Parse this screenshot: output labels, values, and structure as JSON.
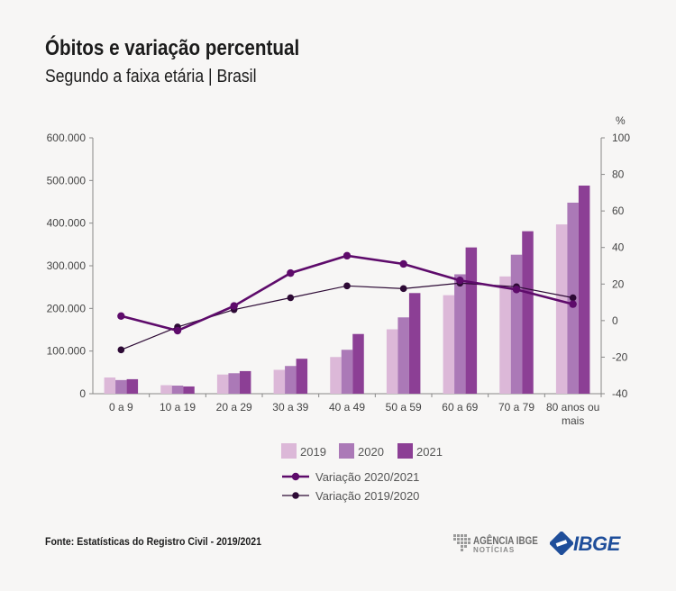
{
  "title": "Óbitos e variação percentual",
  "subtitle": "Segundo a faixa etária | Brasil",
  "source": "Fonte: Estatísticas do Registro Civil - 2019/2021",
  "logos": {
    "agencia_main": "AGÊNCIA IBGE",
    "agencia_sub": "NOTÍCIAS",
    "ibge": "IBGE"
  },
  "colors": {
    "bar_2019": "#dcb8d8",
    "bar_2020": "#ab79b7",
    "bar_2021": "#8c3f95",
    "line_2020_2021": "#5e0b6b",
    "line_2019_2020": "#2d0a35",
    "axis": "#888888"
  },
  "chart_data": {
    "type": "bar",
    "categories": [
      "0 a 9",
      "10 a 19",
      "20 a 29",
      "30 a 39",
      "40 a 49",
      "50 a 59",
      "60 a 69",
      "70 a 79",
      "80 anos ou mais"
    ],
    "left_axis": {
      "ylim": [
        0,
        600000
      ],
      "ticks": [
        0,
        100000,
        200000,
        300000,
        400000,
        500000,
        600000
      ],
      "tick_labels": [
        "0",
        "100.000",
        "200.000",
        "300.000",
        "400.000",
        "500.000",
        "600.000"
      ]
    },
    "right_axis": {
      "unit_label": "%",
      "ylim": [
        -40,
        100
      ],
      "ticks": [
        -40,
        -20,
        0,
        20,
        40,
        60,
        80,
        100
      ],
      "tick_labels": [
        "-40",
        "-20",
        "0",
        "20",
        "40",
        "60",
        "80",
        "100"
      ]
    },
    "series": [
      {
        "name": "2019",
        "type": "bar",
        "axis": "left",
        "values": [
          38000,
          20000,
          45000,
          56000,
          86000,
          151000,
          231000,
          275000,
          397000
        ]
      },
      {
        "name": "2020",
        "type": "bar",
        "axis": "left",
        "values": [
          32000,
          19000,
          48000,
          65000,
          103000,
          179000,
          280000,
          326000,
          448000
        ]
      },
      {
        "name": "2021",
        "type": "bar",
        "axis": "left",
        "values": [
          34000,
          17000,
          53000,
          82000,
          140000,
          236000,
          343000,
          381000,
          488000
        ]
      },
      {
        "name": "Variação 2020/2021",
        "type": "line",
        "axis": "right",
        "values": [
          2.5,
          -5.5,
          8,
          26,
          35.5,
          31,
          22,
          17,
          9
        ]
      },
      {
        "name": "Variação 2019/2020",
        "type": "line",
        "axis": "right",
        "values": [
          -16,
          -3.5,
          6,
          12.5,
          19,
          17.5,
          20.5,
          18.5,
          12.5
        ]
      }
    ],
    "legend": [
      "2019",
      "2020",
      "2021",
      "Variação 2020/2021",
      "Variação 2019/2020"
    ],
    "legend_position": "bottom"
  }
}
